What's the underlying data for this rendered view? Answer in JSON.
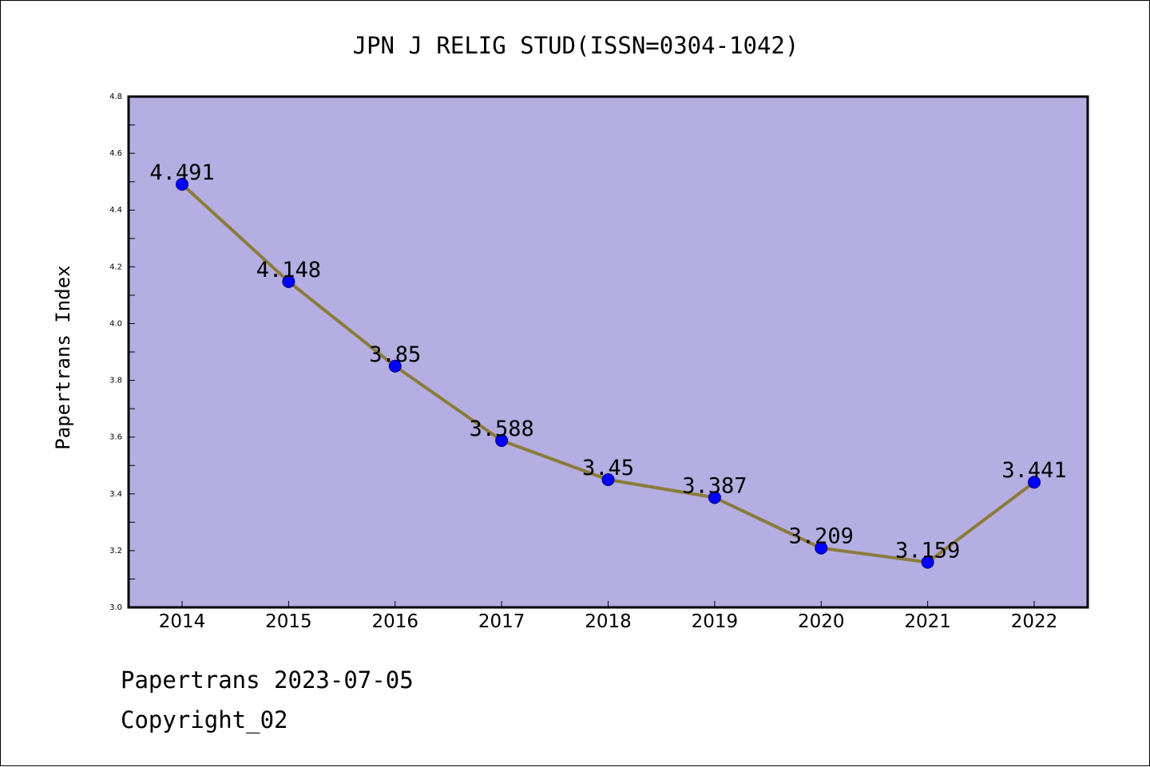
{
  "chart_data": {
    "type": "line",
    "title": "JPN J RELIG STUD(ISSN=0304-1042)",
    "xlabel": "",
    "ylabel": "Papertrans Index",
    "categories": [
      "2014",
      "2015",
      "2016",
      "2017",
      "2018",
      "2019",
      "2020",
      "2021",
      "2022"
    ],
    "series": [
      {
        "values": [
          4.491,
          4.148,
          3.85,
          3.588,
          3.45,
          3.387,
          3.209,
          3.159,
          3.441
        ],
        "labels": [
          "4.491",
          "4.148",
          "3.85",
          "3.588",
          "3.45",
          "3.387",
          "3.209",
          "3.159",
          "3.441"
        ]
      }
    ],
    "ylim": [
      3.0,
      4.8
    ],
    "yticks": [
      "3.0",
      "3.2",
      "3.4",
      "3.6",
      "3.8",
      "4.0",
      "4.2",
      "4.4",
      "4.6",
      "4.8"
    ],
    "grid": false,
    "legend": "none",
    "colors": {
      "plot_background": "#b4aee2",
      "line": "#8b7b3a",
      "marker": "#0000ff",
      "marker_edge": "#000080"
    }
  },
  "footer": {
    "line1": "Papertrans 2023-07-05",
    "line2": "Copyright_02"
  }
}
